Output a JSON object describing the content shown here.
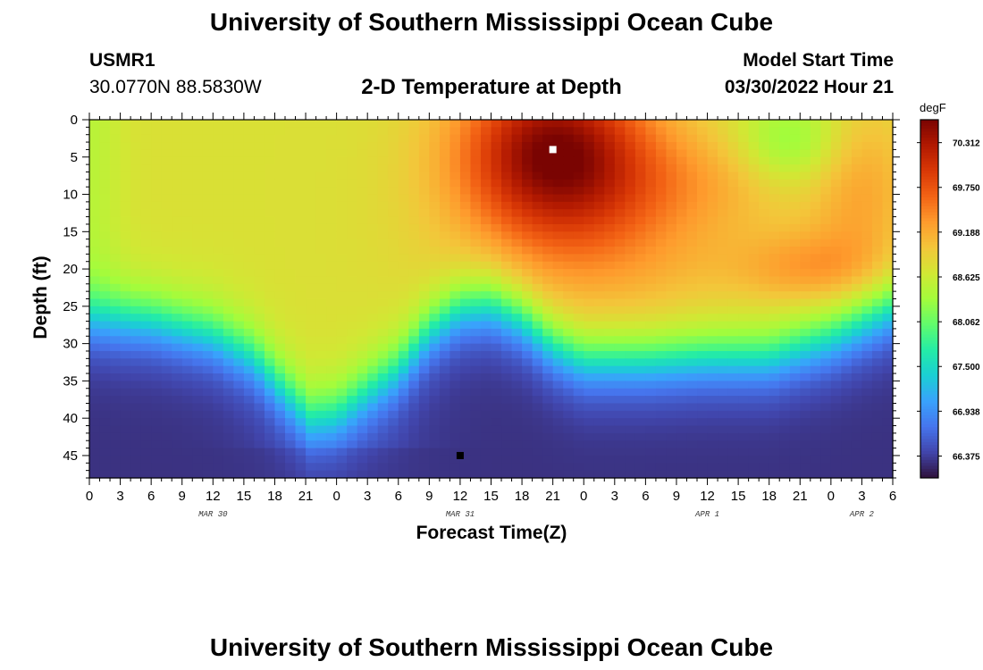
{
  "header": {
    "title": "University of Southern Mississippi Ocean Cube",
    "station_id": "USMR1",
    "station_location": "30.0770N  88.5830W",
    "subtitle": "2-D Temperature at Depth",
    "model_start_label": "Model Start Time",
    "model_start_value": "03/30/2022 Hour 21"
  },
  "footer": {
    "title": "University of Southern Mississippi Ocean Cube"
  },
  "chart_data": {
    "type": "heatmap",
    "title": "2-D Temperature at Depth",
    "xlabel": "Forecast Time(Z)",
    "ylabel": "Depth (ft)",
    "colorbar_unit": "degF",
    "x_hours_since_mar30_00z": {
      "min": 0,
      "max": 78
    },
    "x_ticks": [
      {
        "hour": 0,
        "label": "0"
      },
      {
        "hour": 3,
        "label": "3"
      },
      {
        "hour": 6,
        "label": "6"
      },
      {
        "hour": 9,
        "label": "9"
      },
      {
        "hour": 12,
        "label": "12"
      },
      {
        "hour": 15,
        "label": "15"
      },
      {
        "hour": 18,
        "label": "18"
      },
      {
        "hour": 21,
        "label": "21"
      },
      {
        "hour": 24,
        "label": "0"
      },
      {
        "hour": 27,
        "label": "3"
      },
      {
        "hour": 30,
        "label": "6"
      },
      {
        "hour": 33,
        "label": "9"
      },
      {
        "hour": 36,
        "label": "12"
      },
      {
        "hour": 39,
        "label": "15"
      },
      {
        "hour": 42,
        "label": "18"
      },
      {
        "hour": 45,
        "label": "21"
      },
      {
        "hour": 48,
        "label": "0"
      },
      {
        "hour": 51,
        "label": "3"
      },
      {
        "hour": 54,
        "label": "6"
      },
      {
        "hour": 57,
        "label": "9"
      },
      {
        "hour": 60,
        "label": "12"
      },
      {
        "hour": 63,
        "label": "15"
      },
      {
        "hour": 66,
        "label": "18"
      },
      {
        "hour": 69,
        "label": "21"
      },
      {
        "hour": 72,
        "label": "0"
      },
      {
        "hour": 75,
        "label": "3"
      },
      {
        "hour": 78,
        "label": "6"
      }
    ],
    "date_labels": [
      {
        "hour": 12,
        "label": "MAR 30"
      },
      {
        "hour": 36,
        "label": "MAR 31"
      },
      {
        "hour": 60,
        "label": "APR 1"
      },
      {
        "hour": 75,
        "label": "APR 2"
      }
    ],
    "y_depth_ft": {
      "min": 0,
      "max": 48
    },
    "y_ticks": [
      0,
      5,
      10,
      15,
      20,
      25,
      30,
      35,
      40,
      45
    ],
    "colorbar_ticks": [
      "70.312",
      "69.750",
      "69.188",
      "68.625",
      "68.062",
      "67.500",
      "66.938",
      "66.375"
    ],
    "color_range_degF": [
      66.1,
      70.6
    ],
    "colormap": [
      "#30123b",
      "#4145ab",
      "#4675ed",
      "#39a2fc",
      "#1bcfd4",
      "#24eca6",
      "#61fc6c",
      "#a4fc3b",
      "#d1e834",
      "#f3c63a",
      "#fe9b2d",
      "#f36315",
      "#d93806",
      "#b11901",
      "#7a0402"
    ],
    "profile": {
      "thermocline_depth_ft_by_hour": [
        [
          0,
          26.5
        ],
        [
          6,
          27
        ],
        [
          12,
          29
        ],
        [
          16,
          32
        ],
        [
          19,
          36.5
        ],
        [
          21.5,
          40
        ],
        [
          24,
          39.5
        ],
        [
          27,
          36.5
        ],
        [
          30,
          33.5
        ],
        [
          33,
          28.5
        ],
        [
          36,
          25.5
        ],
        [
          39,
          25
        ],
        [
          42,
          27
        ],
        [
          45,
          30.5
        ],
        [
          48,
          32.5
        ],
        [
          54,
          32.5
        ],
        [
          60,
          32
        ],
        [
          66,
          32
        ],
        [
          72,
          29.5
        ],
        [
          78,
          25.5
        ]
      ],
      "surface_max_degF": {
        "hour": 45,
        "depth_ft": 4,
        "value": 70.4
      },
      "deep_min_degF": 66.3
    },
    "markers": [
      {
        "name": "maximum",
        "hour": 45,
        "depth_ft": 4,
        "color": "#ffffff"
      },
      {
        "name": "minimum",
        "hour": 36,
        "depth_ft": 45,
        "color": "#000000"
      }
    ]
  }
}
